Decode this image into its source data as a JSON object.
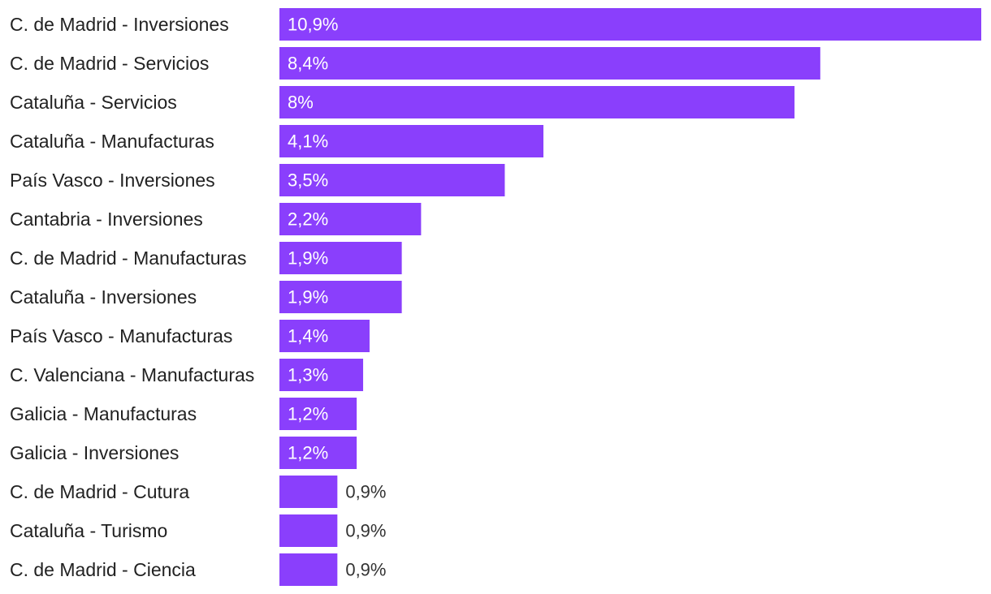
{
  "chart_data": {
    "type": "bar",
    "orientation": "horizontal",
    "categories": [
      "C. de Madrid - Inversiones",
      "C. de Madrid - Servicios",
      "Cataluña - Servicios",
      "Cataluña - Manufacturas",
      "País Vasco - Inversiones",
      "Cantabria - Inversiones",
      "C. de Madrid - Manufacturas",
      "Cataluña - Inversiones",
      "País Vasco - Manufacturas",
      "C. Valenciana - Manufacturas",
      "Galicia - Manufacturas",
      "Galicia - Inversiones",
      "C. de Madrid - Cutura",
      "Cataluña - Turismo",
      "C. de Madrid - Ciencia"
    ],
    "values": [
      10.9,
      8.4,
      8.0,
      4.1,
      3.5,
      2.2,
      1.9,
      1.9,
      1.4,
      1.3,
      1.2,
      1.2,
      0.9,
      0.9,
      0.9
    ],
    "value_labels": [
      "10,9%",
      "8,4%",
      "8%",
      "4,1%",
      "3,5%",
      "2,2%",
      "1,9%",
      "1,9%",
      "1,4%",
      "1,3%",
      "1,2%",
      "1,2%",
      "0,9%",
      "0,9%",
      "0,9%"
    ],
    "title": "",
    "xlabel": "",
    "ylabel": "",
    "grid": false,
    "legend": "none",
    "colors": {
      "bar": "#8a3ffc",
      "label_inside": "#ffffff",
      "label_outside": "#333333",
      "category_text": "#222222"
    }
  }
}
